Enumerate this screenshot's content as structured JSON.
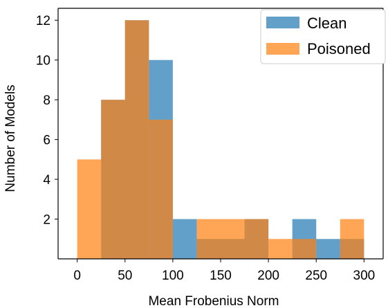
{
  "chart_data": {
    "type": "bar",
    "chart_kind": "overlapping-histogram",
    "xlabel": "Mean Frobenius Norm",
    "ylabel": "Number of Models",
    "xlim": [
      -20,
      320
    ],
    "ylim": [
      0,
      12.6
    ],
    "xticks": [
      0,
      50,
      100,
      150,
      200,
      250,
      300
    ],
    "yticks": [
      2,
      4,
      6,
      8,
      10,
      12
    ],
    "grid": false,
    "legend_position": "top-right",
    "bin_edges": [
      0,
      25,
      50,
      75,
      100,
      125,
      150,
      175,
      200,
      225,
      250,
      275,
      300
    ],
    "series": [
      {
        "name": "Clean",
        "color": "#1f77b4",
        "counts": [
          0,
          8,
          12,
          10,
          2,
          1,
          1,
          2,
          0,
          2,
          1,
          1
        ]
      },
      {
        "name": "Poisoned",
        "color": "#ff7f0e",
        "counts": [
          5,
          8,
          12,
          7,
          0,
          2,
          2,
          2,
          1,
          1,
          0,
          2
        ]
      }
    ],
    "alpha": 0.7,
    "overlap_color": "#cd7f3a"
  }
}
